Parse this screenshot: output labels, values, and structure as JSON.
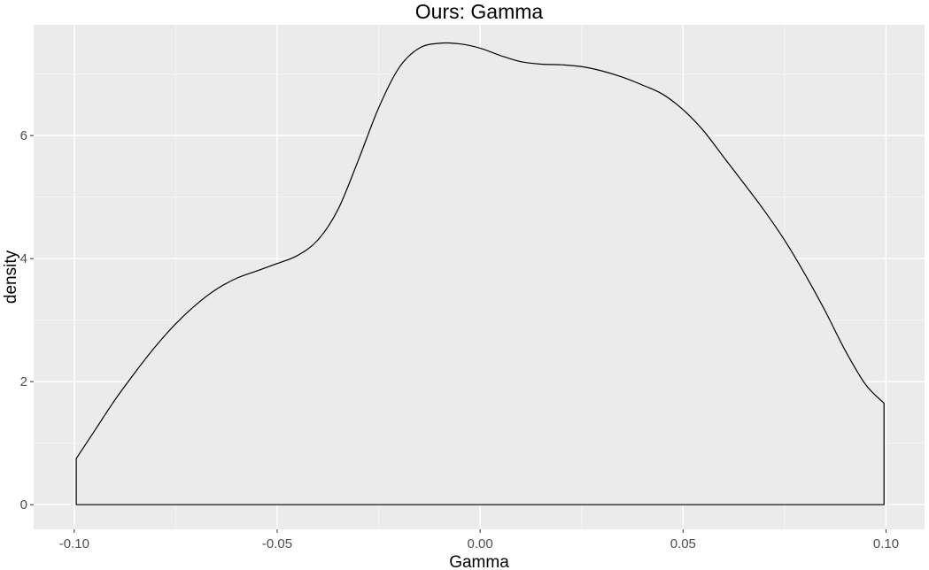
{
  "chart_data": {
    "type": "area",
    "title": "Ours: Gamma",
    "xlabel": "Gamma",
    "ylabel": "density",
    "xlim": [
      -0.11,
      0.1095
    ],
    "ylim": [
      -0.4,
      7.8
    ],
    "x_ticks": [
      -0.1,
      -0.05,
      0.0,
      0.05,
      0.1
    ],
    "x_tick_labels": [
      "-0.10",
      "-0.05",
      "0.00",
      "0.05",
      "0.10"
    ],
    "y_ticks": [
      0,
      2,
      4,
      6
    ],
    "y_tick_labels": [
      "0",
      "2",
      "4",
      "6"
    ],
    "grid": true,
    "legend": "none",
    "colors": {
      "panel_background": "#ebebeb",
      "grid_major": "#ffffff",
      "grid_minor": "#f5f5f5",
      "outline": "#000000",
      "fill": "#ebebeb"
    },
    "series": [
      {
        "x": [
          -0.0995,
          -0.095,
          -0.09,
          -0.085,
          -0.08,
          -0.075,
          -0.07,
          -0.065,
          -0.06,
          -0.055,
          -0.05,
          -0.045,
          -0.04,
          -0.035,
          -0.03,
          -0.025,
          -0.02,
          -0.015,
          -0.01,
          -0.005,
          0.0,
          0.005,
          0.01,
          0.015,
          0.02,
          0.025,
          0.03,
          0.035,
          0.04,
          0.045,
          0.05,
          0.055,
          0.06,
          0.065,
          0.07,
          0.075,
          0.08,
          0.085,
          0.09,
          0.095,
          0.0995
        ],
        "y": [
          0.75,
          1.2,
          1.7,
          2.15,
          2.57,
          2.94,
          3.25,
          3.5,
          3.68,
          3.8,
          3.92,
          4.05,
          4.3,
          4.8,
          5.6,
          6.45,
          7.1,
          7.42,
          7.5,
          7.49,
          7.42,
          7.3,
          7.2,
          7.16,
          7.15,
          7.12,
          7.05,
          6.95,
          6.82,
          6.67,
          6.42,
          6.08,
          5.65,
          5.22,
          4.78,
          4.3,
          3.75,
          3.15,
          2.5,
          1.95,
          1.65
        ]
      }
    ]
  }
}
